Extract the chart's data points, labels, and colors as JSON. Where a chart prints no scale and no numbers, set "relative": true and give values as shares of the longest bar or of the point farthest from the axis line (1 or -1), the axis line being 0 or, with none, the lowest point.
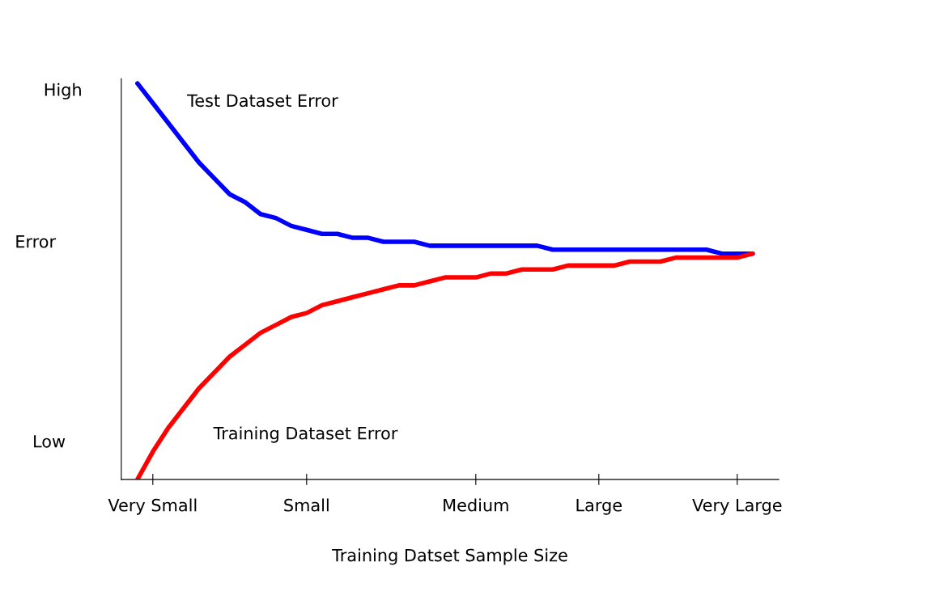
{
  "chart_data": {
    "type": "line",
    "relative": true,
    "xlabel": "Training Datset Sample Size",
    "ylabel": "Error",
    "annotations": [
      "High",
      "Low"
    ],
    "categories": [
      null,
      "Very Small",
      null,
      null,
      null,
      null,
      null,
      null,
      null,
      null,
      null,
      "Small",
      null,
      null,
      null,
      null,
      null,
      null,
      null,
      null,
      null,
      null,
      "Medium",
      null,
      null,
      null,
      null,
      null,
      null,
      null,
      "Large",
      null,
      null,
      null,
      null,
      null,
      null,
      null,
      null,
      "Very Large",
      null
    ],
    "grid": false,
    "legend": false,
    "marker": "none",
    "line_style": "solid",
    "series": [
      {
        "name": "Test Dataset Error",
        "color": "#0000ff",
        "values": [
          1.0,
          0.95,
          0.9,
          0.85,
          0.8,
          0.76,
          0.72,
          0.7,
          0.67,
          0.66,
          0.64,
          0.63,
          0.62,
          0.62,
          0.61,
          0.61,
          0.6,
          0.6,
          0.6,
          0.59,
          0.59,
          0.59,
          0.59,
          0.59,
          0.59,
          0.59,
          0.59,
          0.58,
          0.58,
          0.58,
          0.58,
          0.58,
          0.58,
          0.58,
          0.58,
          0.58,
          0.58,
          0.58,
          0.57,
          0.57,
          0.57
        ]
      },
      {
        "name": "Training Dataset Error",
        "color": "#ff0000",
        "values": [
          0.0,
          0.07,
          0.13,
          0.18,
          0.23,
          0.27,
          0.31,
          0.34,
          0.37,
          0.39,
          0.41,
          0.42,
          0.44,
          0.45,
          0.46,
          0.47,
          0.48,
          0.49,
          0.49,
          0.5,
          0.51,
          0.51,
          0.51,
          0.52,
          0.52,
          0.53,
          0.53,
          0.53,
          0.54,
          0.54,
          0.54,
          0.54,
          0.55,
          0.55,
          0.55,
          0.56,
          0.56,
          0.56,
          0.56,
          0.56,
          0.57
        ]
      }
    ]
  }
}
